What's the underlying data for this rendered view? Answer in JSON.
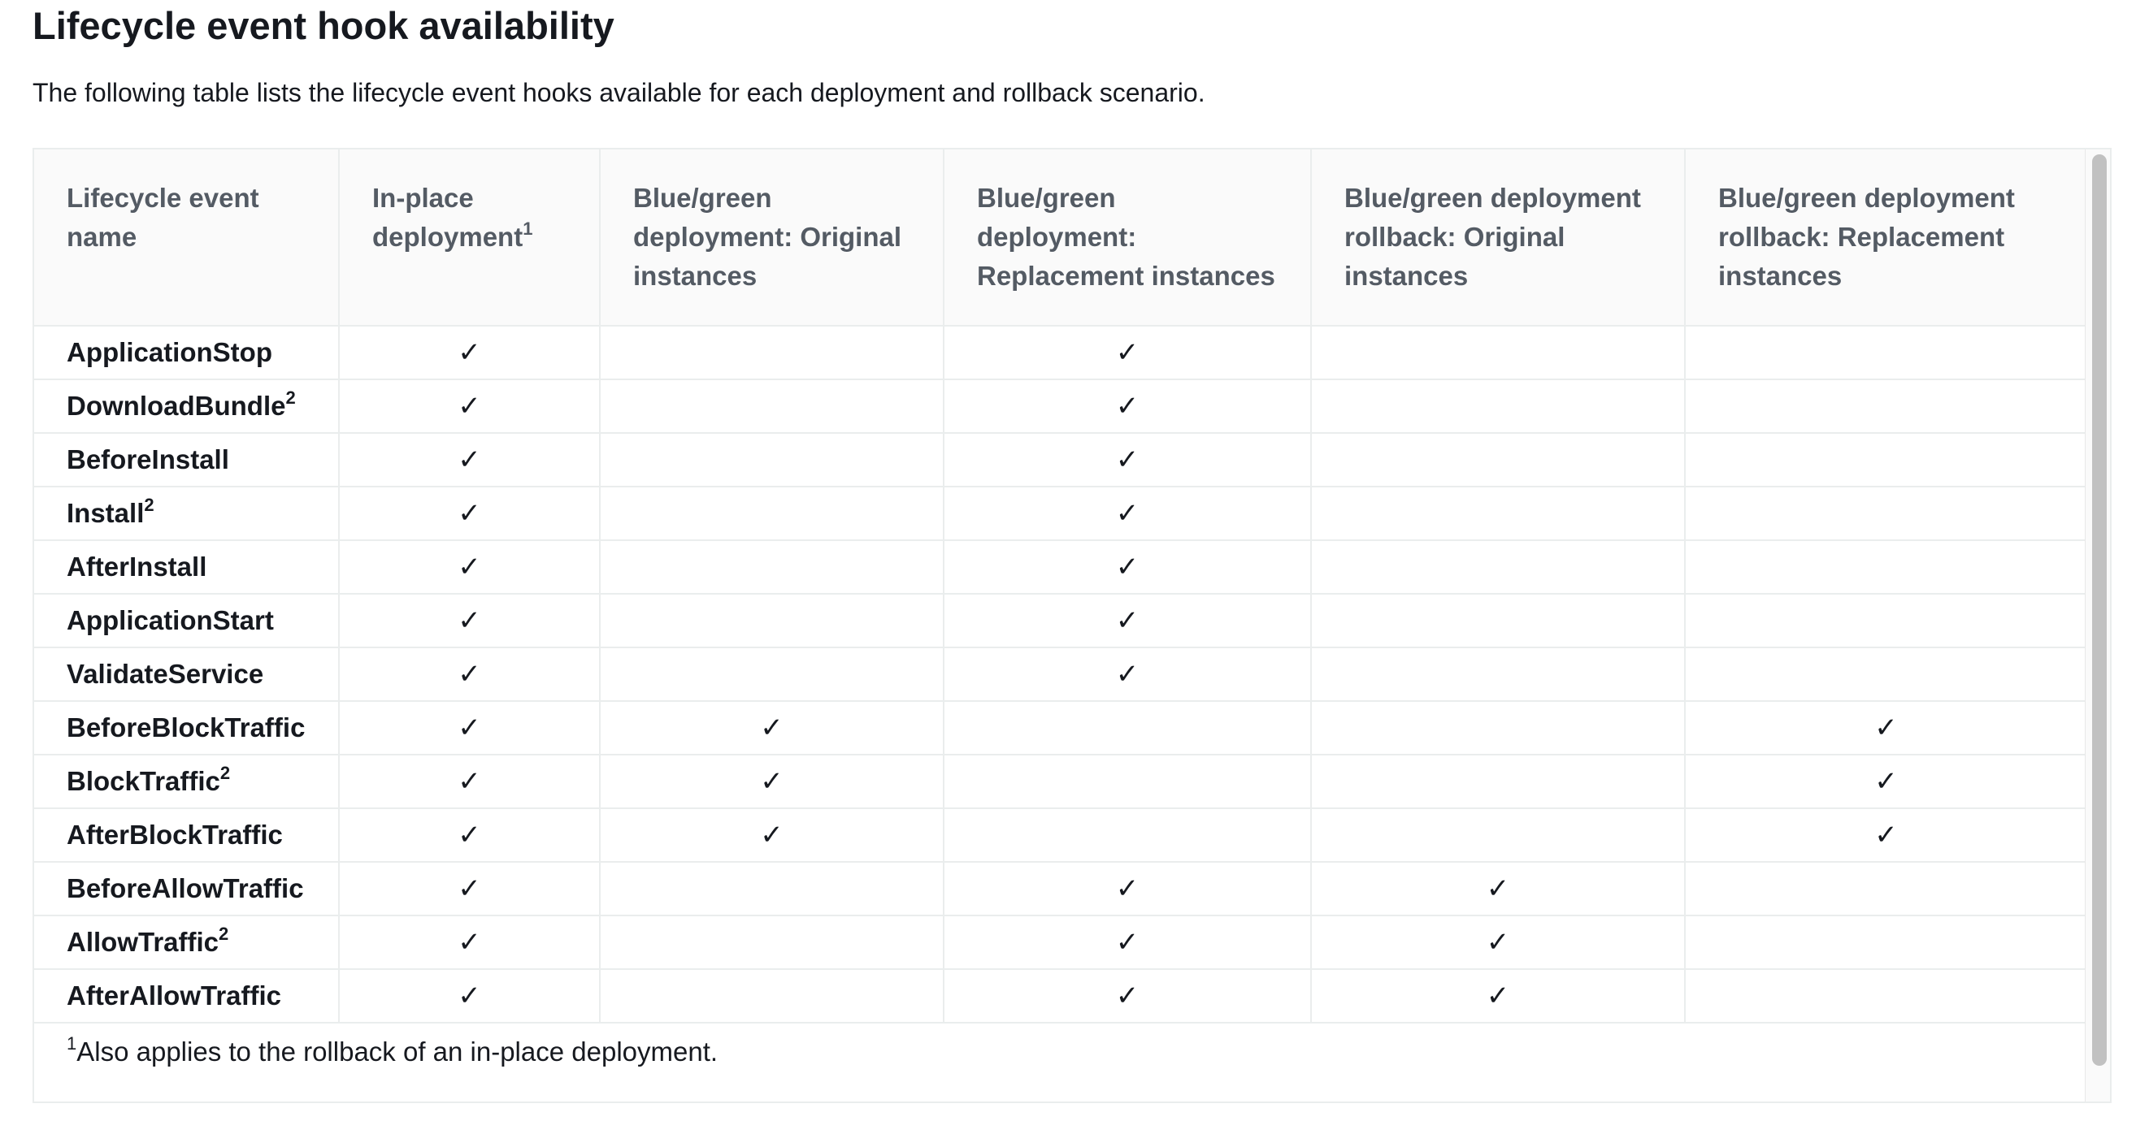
{
  "header": {
    "title": "Lifecycle event hook availability",
    "description": "The following table lists the lifecycle event hooks available for each deployment and rollback scenario."
  },
  "table": {
    "columns": [
      {
        "text": "Lifecycle event name",
        "note": null
      },
      {
        "text": "In-place deployment",
        "note": "1"
      },
      {
        "text": "Blue/green deployment: Original instances",
        "note": null
      },
      {
        "text": "Blue/green deployment: Replacement instances",
        "note": null
      },
      {
        "text": "Blue/green deployment rollback: Original instances",
        "note": null
      },
      {
        "text": "Blue/green deployment rollback: Replacement instances",
        "note": null
      }
    ],
    "rows": [
      {
        "name": "ApplicationStop",
        "note": null,
        "cells": [
          "✓",
          null,
          "✓",
          null,
          null
        ]
      },
      {
        "name": "DownloadBundle",
        "note": "2",
        "cells": [
          "✓",
          null,
          "✓",
          null,
          null
        ]
      },
      {
        "name": "BeforeInstall",
        "note": null,
        "cells": [
          "✓",
          null,
          "✓",
          null,
          null
        ]
      },
      {
        "name": "Install",
        "note": "2",
        "cells": [
          "✓",
          null,
          "✓",
          null,
          null
        ]
      },
      {
        "name": "AfterInstall",
        "note": null,
        "cells": [
          "✓",
          null,
          "✓",
          null,
          null
        ]
      },
      {
        "name": "ApplicationStart",
        "note": null,
        "cells": [
          "✓",
          null,
          "✓",
          null,
          null
        ]
      },
      {
        "name": "ValidateService",
        "note": null,
        "cells": [
          "✓",
          null,
          "✓",
          null,
          null
        ]
      },
      {
        "name": "BeforeBlockTraffic",
        "note": null,
        "cells": [
          "✓",
          "✓",
          null,
          null,
          "✓"
        ]
      },
      {
        "name": "BlockTraffic",
        "note": "2",
        "cells": [
          "✓",
          "✓",
          null,
          null,
          "✓"
        ]
      },
      {
        "name": "AfterBlockTraffic",
        "note": null,
        "cells": [
          "✓",
          "✓",
          null,
          null,
          "✓"
        ]
      },
      {
        "name": "BeforeAllowTraffic",
        "note": null,
        "cells": [
          "✓",
          null,
          "✓",
          "✓",
          null
        ]
      },
      {
        "name": "AllowTraffic",
        "note": "2",
        "cells": [
          "✓",
          null,
          "✓",
          "✓",
          null
        ]
      },
      {
        "name": "AfterAllowTraffic",
        "note": null,
        "cells": [
          "✓",
          null,
          "✓",
          "✓",
          null
        ]
      }
    ],
    "footnotes": [
      {
        "mark": "1",
        "text": "Also applies to the rollback of an in-place deployment."
      }
    ]
  }
}
